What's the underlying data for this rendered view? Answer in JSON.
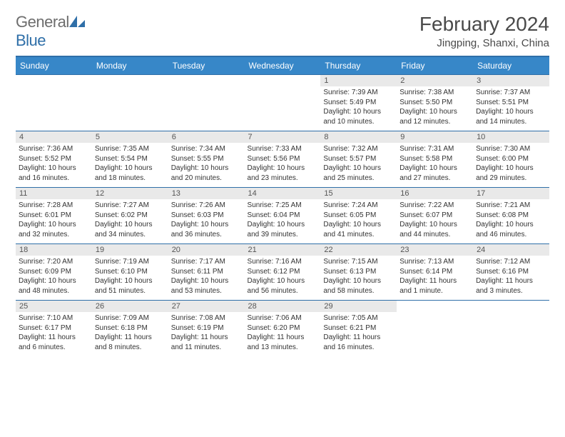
{
  "logo": {
    "text_gray": "General",
    "text_blue": "Blue"
  },
  "title": {
    "month": "February 2024",
    "location": "Jingping, Shanxi, China"
  },
  "colors": {
    "header_bg": "#3787c8",
    "header_border": "#2f6fa8",
    "daynum_bg": "#e9e9e9",
    "text": "#333333"
  },
  "day_headers": [
    "Sunday",
    "Monday",
    "Tuesday",
    "Wednesday",
    "Thursday",
    "Friday",
    "Saturday"
  ],
  "weeks": [
    [
      null,
      null,
      null,
      null,
      {
        "n": "1",
        "sr": "7:39 AM",
        "ss": "5:49 PM",
        "dl": "10 hours and 10 minutes."
      },
      {
        "n": "2",
        "sr": "7:38 AM",
        "ss": "5:50 PM",
        "dl": "10 hours and 12 minutes."
      },
      {
        "n": "3",
        "sr": "7:37 AM",
        "ss": "5:51 PM",
        "dl": "10 hours and 14 minutes."
      }
    ],
    [
      {
        "n": "4",
        "sr": "7:36 AM",
        "ss": "5:52 PM",
        "dl": "10 hours and 16 minutes."
      },
      {
        "n": "5",
        "sr": "7:35 AM",
        "ss": "5:54 PM",
        "dl": "10 hours and 18 minutes."
      },
      {
        "n": "6",
        "sr": "7:34 AM",
        "ss": "5:55 PM",
        "dl": "10 hours and 20 minutes."
      },
      {
        "n": "7",
        "sr": "7:33 AM",
        "ss": "5:56 PM",
        "dl": "10 hours and 23 minutes."
      },
      {
        "n": "8",
        "sr": "7:32 AM",
        "ss": "5:57 PM",
        "dl": "10 hours and 25 minutes."
      },
      {
        "n": "9",
        "sr": "7:31 AM",
        "ss": "5:58 PM",
        "dl": "10 hours and 27 minutes."
      },
      {
        "n": "10",
        "sr": "7:30 AM",
        "ss": "6:00 PM",
        "dl": "10 hours and 29 minutes."
      }
    ],
    [
      {
        "n": "11",
        "sr": "7:28 AM",
        "ss": "6:01 PM",
        "dl": "10 hours and 32 minutes."
      },
      {
        "n": "12",
        "sr": "7:27 AM",
        "ss": "6:02 PM",
        "dl": "10 hours and 34 minutes."
      },
      {
        "n": "13",
        "sr": "7:26 AM",
        "ss": "6:03 PM",
        "dl": "10 hours and 36 minutes."
      },
      {
        "n": "14",
        "sr": "7:25 AM",
        "ss": "6:04 PM",
        "dl": "10 hours and 39 minutes."
      },
      {
        "n": "15",
        "sr": "7:24 AM",
        "ss": "6:05 PM",
        "dl": "10 hours and 41 minutes."
      },
      {
        "n": "16",
        "sr": "7:22 AM",
        "ss": "6:07 PM",
        "dl": "10 hours and 44 minutes."
      },
      {
        "n": "17",
        "sr": "7:21 AM",
        "ss": "6:08 PM",
        "dl": "10 hours and 46 minutes."
      }
    ],
    [
      {
        "n": "18",
        "sr": "7:20 AM",
        "ss": "6:09 PM",
        "dl": "10 hours and 48 minutes."
      },
      {
        "n": "19",
        "sr": "7:19 AM",
        "ss": "6:10 PM",
        "dl": "10 hours and 51 minutes."
      },
      {
        "n": "20",
        "sr": "7:17 AM",
        "ss": "6:11 PM",
        "dl": "10 hours and 53 minutes."
      },
      {
        "n": "21",
        "sr": "7:16 AM",
        "ss": "6:12 PM",
        "dl": "10 hours and 56 minutes."
      },
      {
        "n": "22",
        "sr": "7:15 AM",
        "ss": "6:13 PM",
        "dl": "10 hours and 58 minutes."
      },
      {
        "n": "23",
        "sr": "7:13 AM",
        "ss": "6:14 PM",
        "dl": "11 hours and 1 minute."
      },
      {
        "n": "24",
        "sr": "7:12 AM",
        "ss": "6:16 PM",
        "dl": "11 hours and 3 minutes."
      }
    ],
    [
      {
        "n": "25",
        "sr": "7:10 AM",
        "ss": "6:17 PM",
        "dl": "11 hours and 6 minutes."
      },
      {
        "n": "26",
        "sr": "7:09 AM",
        "ss": "6:18 PM",
        "dl": "11 hours and 8 minutes."
      },
      {
        "n": "27",
        "sr": "7:08 AM",
        "ss": "6:19 PM",
        "dl": "11 hours and 11 minutes."
      },
      {
        "n": "28",
        "sr": "7:06 AM",
        "ss": "6:20 PM",
        "dl": "11 hours and 13 minutes."
      },
      {
        "n": "29",
        "sr": "7:05 AM",
        "ss": "6:21 PM",
        "dl": "11 hours and 16 minutes."
      },
      null,
      null
    ]
  ],
  "labels": {
    "sunrise": "Sunrise:",
    "sunset": "Sunset:",
    "daylight": "Daylight:"
  }
}
